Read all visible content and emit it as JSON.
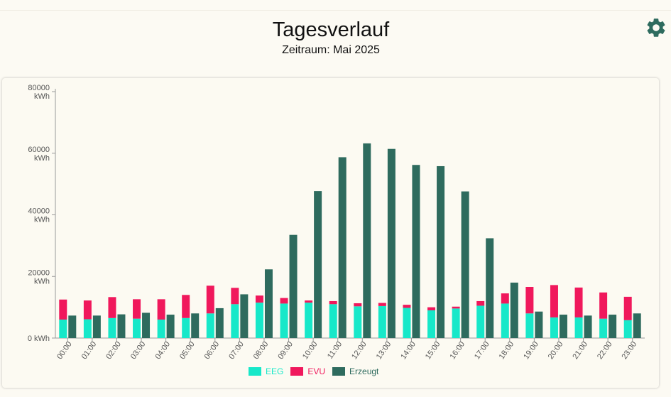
{
  "header": {
    "title": "Tagesverlauf",
    "subtitle": "Zeitraum: Mai 2025"
  },
  "settings_icon": "gear-icon",
  "colors": {
    "eeg": "#17e8c9",
    "evu": "#f0185c",
    "erzeugt": "#2e6b5e"
  },
  "chart_data": {
    "type": "bar",
    "y_unit": "kWh",
    "ylim": [
      0,
      80000
    ],
    "y_ticks": [
      "0 kWh",
      "20000 kWh",
      "40000 kWh",
      "60000 kWh",
      "80000 kWh"
    ],
    "categories": [
      "00:00",
      "01:00",
      "02:00",
      "03:00",
      "04:00",
      "05:00",
      "06:00",
      "07:00",
      "08:00",
      "09:00",
      "10:00",
      "11:00",
      "12:00",
      "13:00",
      "14:00",
      "15:00",
      "16:00",
      "17:00",
      "18:00",
      "19:00",
      "20:00",
      "21:00",
      "22:00",
      "23:00"
    ],
    "series": [
      {
        "name": "EEG",
        "stack": "verbrauch",
        "values": [
          6000,
          6100,
          6500,
          6300,
          6000,
          6500,
          8000,
          11000,
          11500,
          11200,
          11500,
          11000,
          10300,
          10400,
          9800,
          9000,
          9600,
          10500,
          11200,
          8000,
          6700,
          6700,
          6300,
          5800
        ]
      },
      {
        "name": "EVU",
        "stack": "verbrauch",
        "values": [
          6500,
          6100,
          6800,
          6300,
          6600,
          7500,
          9000,
          5300,
          2300,
          1800,
          700,
          1000,
          1000,
          1000,
          1000,
          1000,
          600,
          1500,
          3300,
          8600,
          10500,
          9700,
          8500,
          7600
        ]
      },
      {
        "name": "Erzeugt",
        "stack": "erzeugt",
        "values": [
          7300,
          7300,
          7700,
          8200,
          7600,
          8000,
          9700,
          14200,
          22300,
          33500,
          47700,
          58700,
          63200,
          61400,
          56200,
          55800,
          47600,
          32400,
          18000,
          8600,
          7600,
          7300,
          7600,
          8000
        ]
      }
    ],
    "legend": [
      "EEG",
      "EVU",
      "Erzeugt"
    ],
    "legend_position": "bottom",
    "grid": false
  }
}
